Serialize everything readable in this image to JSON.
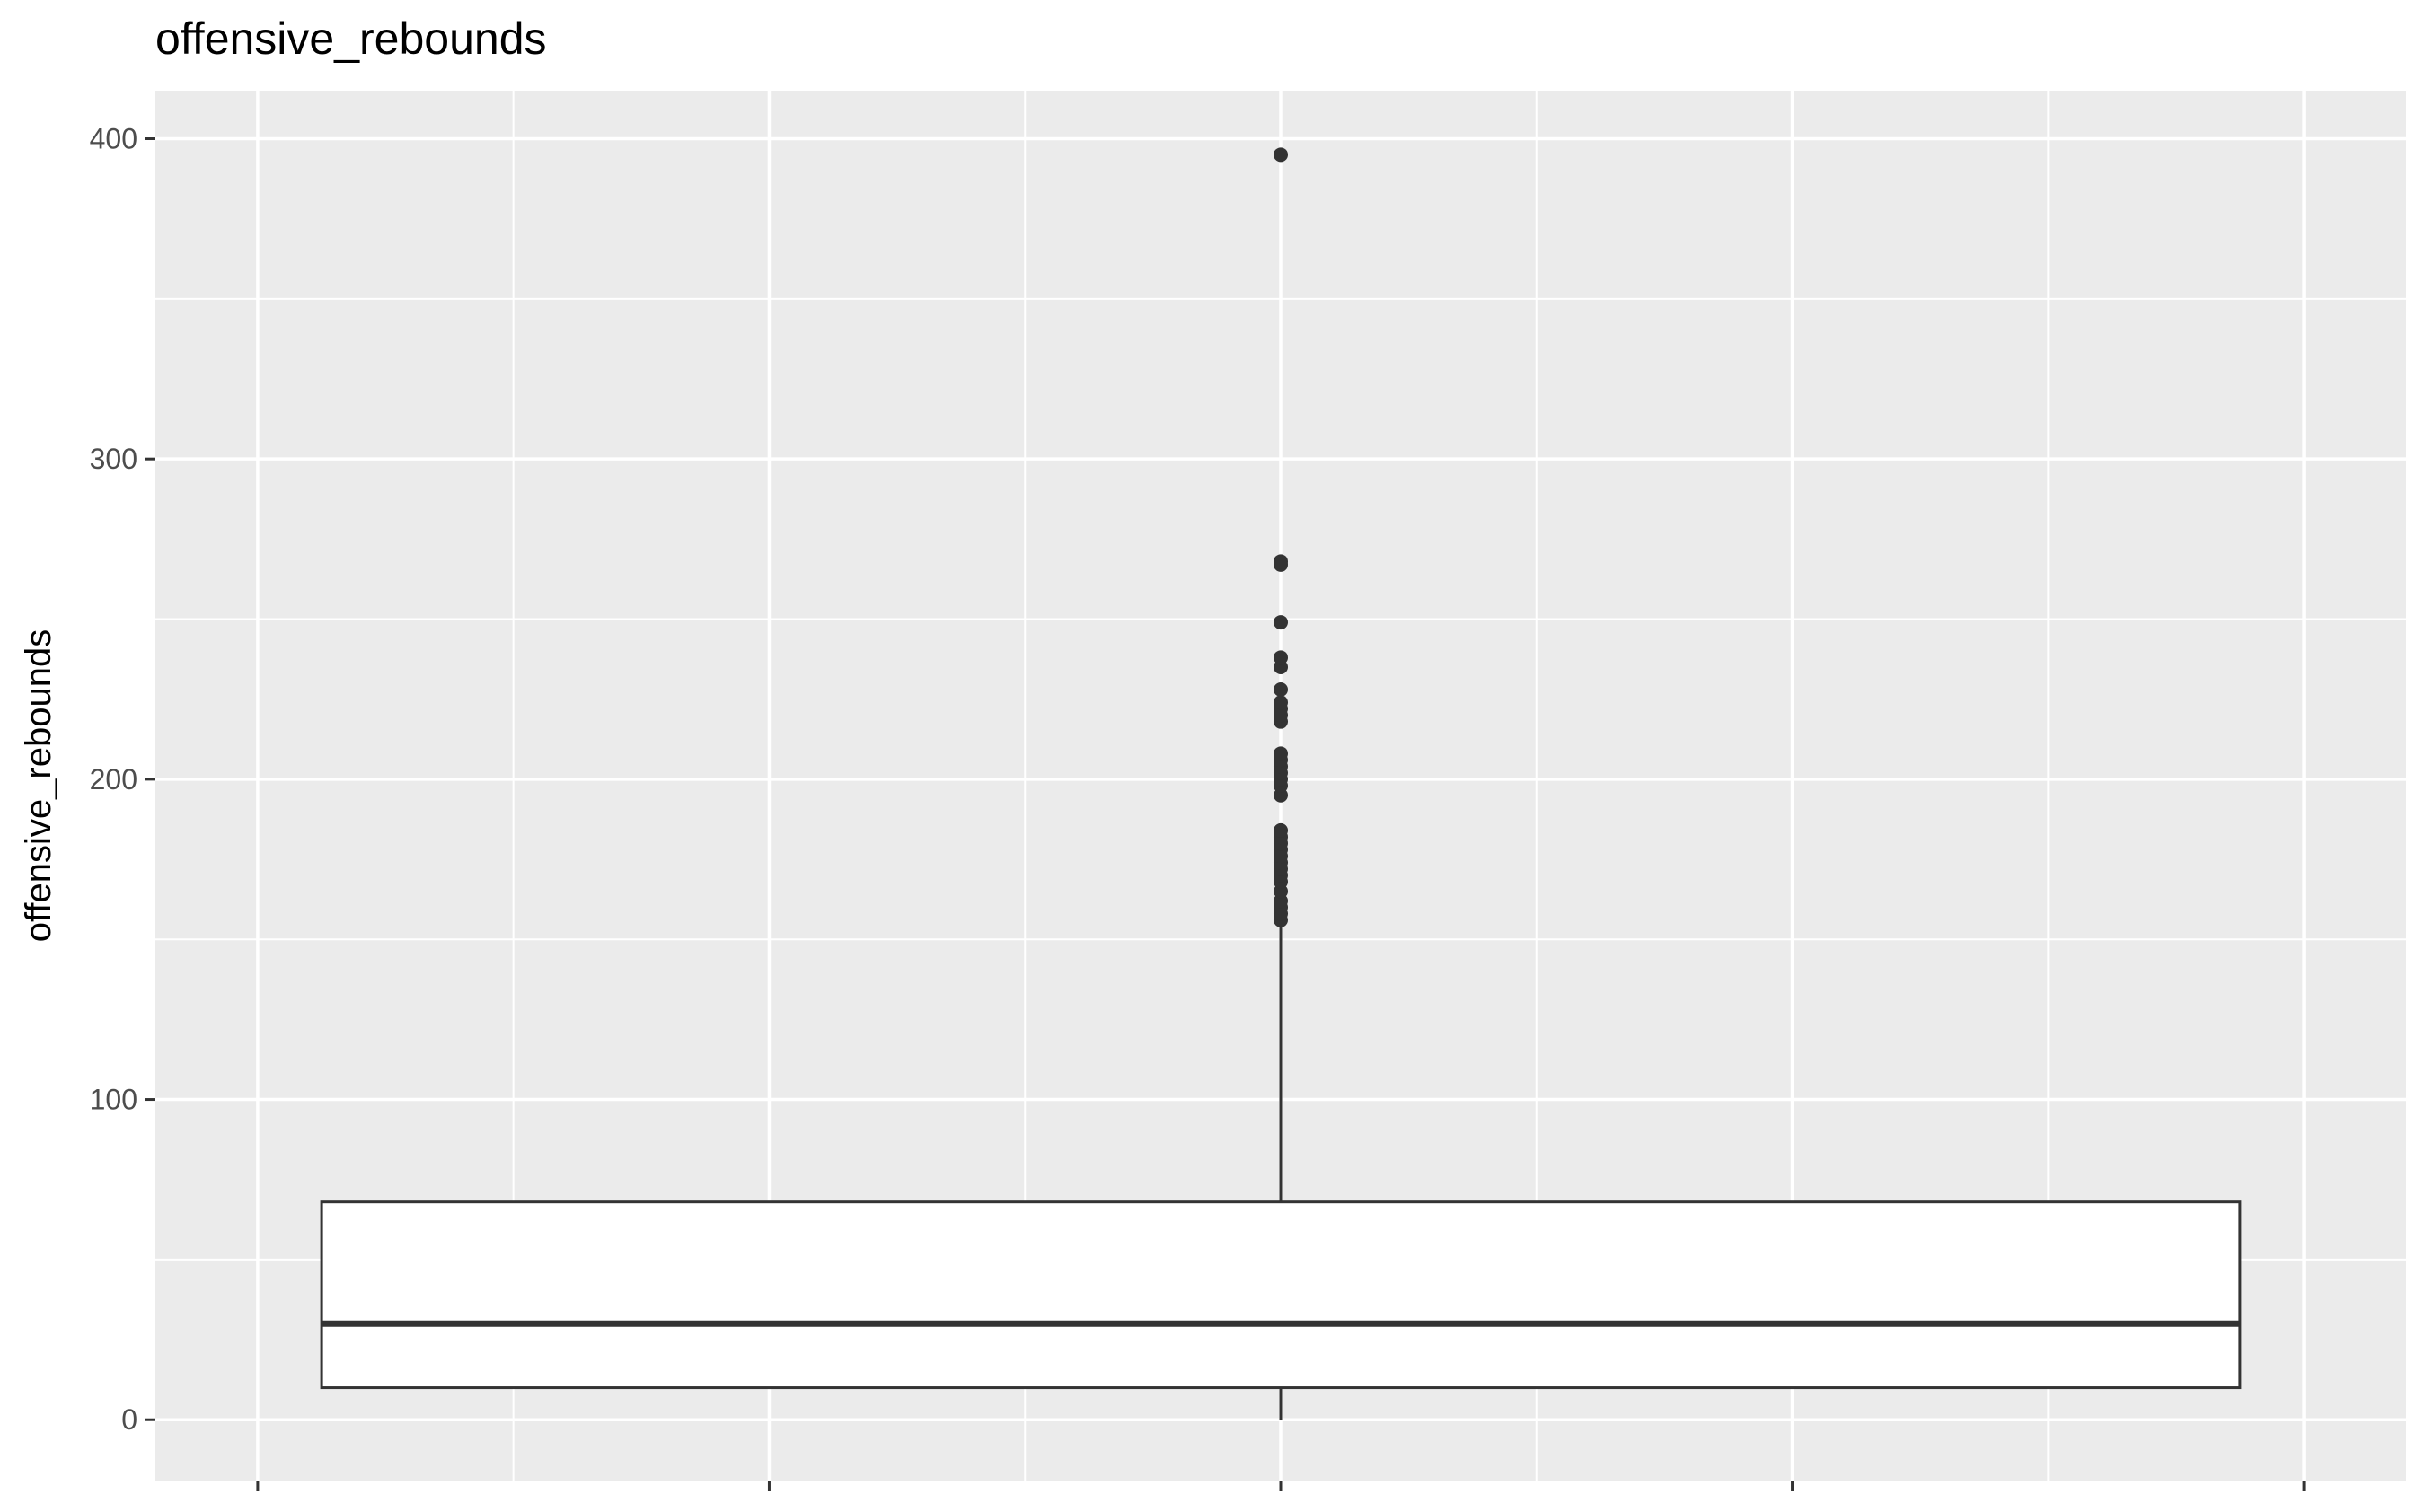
{
  "chart_data": {
    "type": "boxplot",
    "title": "offensive_rebounds",
    "xlabel": "",
    "ylabel": "offensive_rebounds",
    "ylim": [
      -19,
      415
    ],
    "y_ticks": [
      0,
      100,
      200,
      300,
      400
    ],
    "y_tick_labels": [
      "0",
      "100",
      "200",
      "300",
      "400"
    ],
    "grid": true,
    "box": {
      "min": 0,
      "q1": 10,
      "median": 30,
      "q3": 68,
      "whisker_low": 0,
      "whisker_high": 155
    },
    "outliers": [
      156,
      158,
      160,
      162,
      165,
      168,
      170,
      172,
      174,
      176,
      178,
      180,
      182,
      184,
      195,
      198,
      200,
      202,
      204,
      206,
      208,
      218,
      220,
      222,
      224,
      228,
      235,
      238,
      249,
      267,
      268,
      395
    ],
    "colors": {
      "panel_background": "#ebebeb",
      "grid_line": "#ffffff",
      "box_fill": "#ffffff",
      "box_stroke": "#333333",
      "outlier": "#333333",
      "tick_label": "#4d4d4d",
      "tick_mark": "#333333"
    }
  }
}
